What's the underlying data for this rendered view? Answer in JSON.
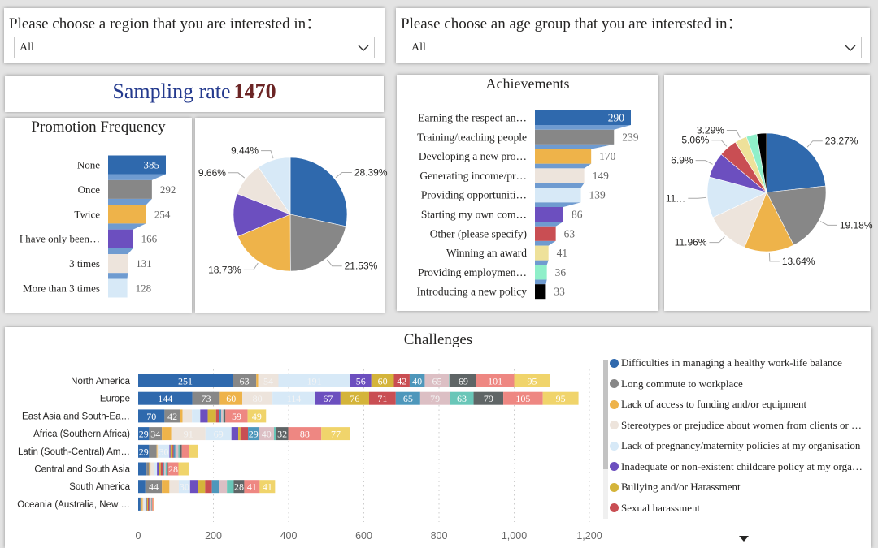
{
  "filters": {
    "region": {
      "label": "Please choose a region that you are interested in：",
      "value": "All"
    },
    "age": {
      "label": "Please choose an age group that you are interested in：",
      "value": "All"
    }
  },
  "sampling": {
    "label": "Sampling rate",
    "value": "1470"
  },
  "colors": {
    "title_blue": "#243a8e",
    "value_maroon": "#6b2424",
    "connector": "#6f9bd0"
  },
  "promotion": {
    "title": "Promotion Frequency",
    "items": [
      {
        "label": "None",
        "value": 385,
        "color": "#2f69ad"
      },
      {
        "label": "Once",
        "value": 292,
        "color": "#878787"
      },
      {
        "label": "Twice",
        "value": 254,
        "color": "#eeb34a"
      },
      {
        "label": "I have only been…",
        "value": 166,
        "color": "#6c4fbf"
      },
      {
        "label": "3 times",
        "value": 131,
        "color": "#ede4dc"
      },
      {
        "label": "More than 3 times",
        "value": 128,
        "color": "#d7e9f7"
      }
    ],
    "pie_labels": [
      "28.39%",
      "21.53%",
      "18.73%",
      "",
      "9.66%",
      "9.44%"
    ]
  },
  "achievements": {
    "title": "Achievements",
    "items": [
      {
        "label": "Earning the respect an…",
        "value": 290,
        "color": "#2f69ad"
      },
      {
        "label": "Training/teaching people",
        "value": 239,
        "color": "#878787"
      },
      {
        "label": "Developing a new pro…",
        "value": 170,
        "color": "#eeb34a"
      },
      {
        "label": "Generating income/pr…",
        "value": 149,
        "color": "#ede4dc"
      },
      {
        "label": "Providing opportuniti…",
        "value": 139,
        "color": "#d7e9f7"
      },
      {
        "label": "Starting my own com…",
        "value": 86,
        "color": "#6c4fbf"
      },
      {
        "label": "Other (please specify)",
        "value": 63,
        "color": "#c94e53"
      },
      {
        "label": "Winning an award",
        "value": 41,
        "color": "#eee19a"
      },
      {
        "label": "Providing employmen…",
        "value": 36,
        "color": "#8fefc9"
      },
      {
        "label": "Introducing a new policy",
        "value": 33,
        "color": "#000000"
      }
    ],
    "pie_labels": [
      "23.27%",
      "19.18%",
      "13.64%",
      "11.96%",
      "11…",
      "6.9%",
      "5.06%",
      "3.29%",
      "",
      ""
    ]
  },
  "chart_data": {
    "type": "bar",
    "orientation": "horizontal-stacked",
    "title": "Challenges",
    "categories": [
      "North America",
      "Europe",
      "East Asia and South-Ea…",
      "Africa (Southern Africa)",
      "Latin (South-Central) Am…",
      "Central and South Asia",
      "South America",
      "Oceania (Australia, New …"
    ],
    "xlim": [
      0,
      1200
    ],
    "xticks": [
      "0",
      "200",
      "400",
      "600",
      "800",
      "1,000",
      "1,200"
    ],
    "grid": true,
    "legend_position": "right",
    "series_colors": [
      "#2f69ad",
      "#878787",
      "#eeb34a",
      "#ede4dc",
      "#d7e9f7",
      "#6c4fbf",
      "#d4b43a",
      "#c94e53",
      "#4e97bb",
      "#dcbfc4",
      "#69c6b8",
      "#5f6566",
      "#ee8782",
      "#f0d46b"
    ],
    "legend": [
      "Difficulties in managing a healthy work-life balance",
      "Long commute to workplace",
      "Lack of access to funding and/or equipment",
      "Stereotypes or prejudice about women from clients or …",
      "Lack of pregnancy/maternity policies at my organisation",
      "Inadequate or non-existent childcare policy at my orga…",
      "Bullying and/or Harassment",
      "Sexual harassment"
    ],
    "values": [
      [
        251,
        63,
        5,
        54,
        191,
        56,
        60,
        42,
        40,
        65,
        3,
        69,
        101,
        95
      ],
      [
        144,
        73,
        60,
        80,
        114,
        67,
        76,
        71,
        65,
        79,
        63,
        79,
        105,
        95
      ],
      [
        70,
        42,
        6,
        25,
        22,
        20,
        22,
        8,
        6,
        5,
        3,
        3,
        59,
        49
      ],
      [
        29,
        34,
        25,
        91,
        69,
        18,
        6,
        20,
        29,
        40,
        6,
        32,
        88,
        77
      ],
      [
        29,
        20,
        2,
        2,
        30,
        3,
        5,
        3,
        5,
        8,
        3,
        6,
        20,
        22
      ],
      [
        22,
        7,
        4,
        9,
        8,
        5,
        5,
        5,
        4,
        4,
        3,
        3,
        28,
        27
      ],
      [
        19,
        44,
        20,
        25,
        30,
        20,
        20,
        18,
        20,
        20,
        18,
        28,
        41,
        41
      ],
      [
        6,
        3,
        3,
        4,
        4,
        3,
        3,
        3,
        3,
        3,
        1,
        1,
        3,
        1
      ]
    ]
  }
}
